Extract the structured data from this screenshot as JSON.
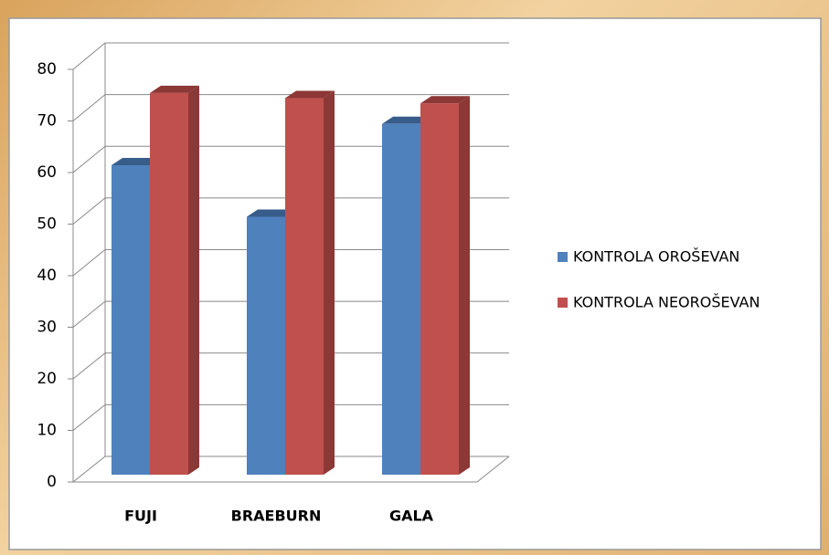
{
  "chart_data": {
    "type": "bar3d",
    "categories": [
      "FUJI",
      "BRAEBURN",
      "GALA"
    ],
    "series": [
      {
        "name": "KONTROLA OROŠEVAN",
        "color": "#4f81bd",
        "side": "#385d8a",
        "values": [
          60,
          50,
          68
        ]
      },
      {
        "name": "KONTROLA NEOROŠEVAN",
        "color": "#c0504d",
        "side": "#8c3836",
        "values": [
          74,
          73,
          72
        ]
      }
    ],
    "ylim": [
      0,
      80
    ],
    "yticks": [
      0,
      10,
      20,
      30,
      40,
      50,
      60,
      70,
      80
    ],
    "grid": true,
    "legend": "right"
  }
}
